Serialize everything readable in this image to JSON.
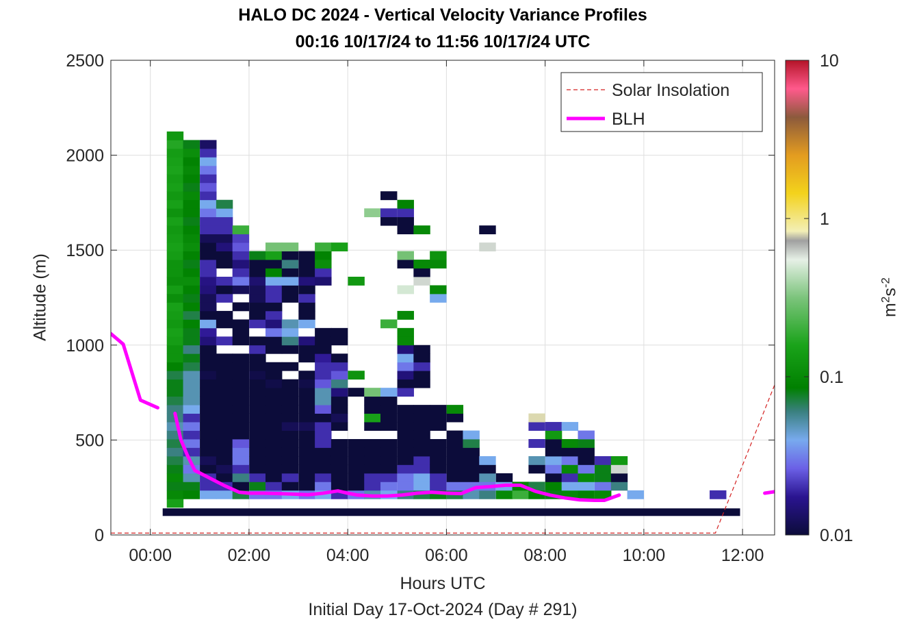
{
  "chart_data": {
    "type": "heatmap",
    "title": "HALO DC 2024 - Vertical Velocity Variance Profiles",
    "subtitle": "00:16 10/17/24 to 11:56 10/17/24  UTC",
    "xlabel": "Hours UTC",
    "xlabel2": "Initial Day 17-Oct-2024 (Day # 291)",
    "ylabel": "Altitude (m)",
    "colorbar_label": "m²s⁻²",
    "colorbar_unit_base": "m",
    "colorbar_unit_sup1": "2",
    "colorbar_unit_mid": "s",
    "colorbar_unit_sup2": "-2",
    "xlim": [
      -0.8,
      12.65
    ],
    "ylim": [
      0,
      2500
    ],
    "x_ticks": [
      "00:00",
      "02:00",
      "04:00",
      "06:00",
      "08:00",
      "10:00",
      "12:00"
    ],
    "x_tick_values": [
      0,
      2,
      4,
      6,
      8,
      10,
      12
    ],
    "y_ticks": [
      "0",
      "500",
      "1000",
      "1500",
      "2000",
      "2500"
    ],
    "y_tick_values": [
      0,
      500,
      1000,
      1500,
      2000,
      2500
    ],
    "color_scale": "log",
    "clim": [
      0.01,
      10
    ],
    "colorbar_ticks": [
      "0.01",
      "0.1",
      "1",
      "10"
    ],
    "colorbar_tick_values": [
      0.01,
      0.1,
      1,
      10
    ],
    "grid": true,
    "legend_position": "top-right",
    "legend": [
      {
        "label": "Solar Insolation",
        "style": "dashed",
        "color": "#d42020"
      },
      {
        "label": "BLH",
        "style": "solid",
        "color": "#ff00ff"
      }
    ],
    "cell_width_hours": 0.333,
    "cell_height_m": 45,
    "variance_columns": [
      {
        "t": 0.5,
        "z0": 145,
        "v": [
          0.15,
          0.1,
          0.08,
          0.1,
          0.08,
          0.07,
          0.06,
          0.07,
          0.06,
          0.05,
          0.06,
          0.06,
          0.07,
          0.08,
          0.08,
          0.07,
          0.09,
          0.12,
          0.12,
          0.14,
          0.15,
          0.13,
          0.14,
          0.15,
          0.11,
          0.14,
          0.11,
          0.12,
          0.12,
          0.14,
          0.15,
          0.14,
          0.13,
          0.15,
          0.12,
          0.15,
          0.13,
          0.15,
          0.14,
          0.16,
          0.15,
          0.14,
          0.17,
          0.13
        ]
      },
      {
        "t": 0.83,
        "z0": 190,
        "v": [
          0.09,
          0.08,
          0.05,
          0.03,
          0.05,
          0.02,
          0.03,
          0.02,
          0.03,
          0.02,
          0.04,
          0.05,
          0.05,
          0.05,
          0.05,
          0.07,
          0.08,
          0.06,
          0.08,
          0.08,
          0.09,
          0.07,
          0.09,
          0.08,
          0.09,
          0.11,
          0.09,
          0.08,
          0.09,
          0.11,
          0.1,
          0.09,
          0.08,
          0.09,
          0.09,
          0.1,
          0.08,
          0.09,
          0.1,
          0.09,
          0.11,
          0.08
        ]
      },
      {
        "t": 1.17,
        "z0": 190,
        "v": [
          0.04,
          0.02,
          0.02,
          0.01,
          0.012,
          0.01,
          0.01,
          0.01,
          0.01,
          0.01,
          0.01,
          0.01,
          0.01,
          0.01,
          0.011,
          0.01,
          0.01,
          0.01,
          0.015,
          0.018,
          0.04,
          0.01,
          0.012,
          0.012,
          0.015,
          0.016,
          0.02,
          0.02,
          0.01,
          0.01,
          0.012,
          0.02,
          0.02,
          0.03,
          0.04,
          0.02,
          0.025,
          0.02,
          0.03,
          0.04,
          0.02,
          0.013
        ]
      },
      {
        "t": 1.5,
        "z0": 190,
        "v": [
          0.04,
          0.02,
          0.01,
          0.012,
          0.01,
          0.01,
          0.01,
          0.01,
          0.01,
          0.01,
          0.01,
          0.01,
          0.01,
          0.01,
          0.01,
          0.01,
          0.01,
          null,
          0.02,
          null,
          0.01,
          0.01,
          null,
          0.02,
          0.01,
          0.02,
          null,
          0.01,
          0.01,
          0.015,
          0.012,
          0.02,
          0.02,
          0.04,
          0.07
        ]
      },
      {
        "t": 1.83,
        "z0": 190,
        "v": [
          0.07,
          0.01,
          0.06,
          0.02,
          0.03,
          0.03,
          0.025,
          0.01,
          0.01,
          0.01,
          0.01,
          0.01,
          0.01,
          0.01,
          0.01,
          0.01,
          0.01,
          null,
          0.01,
          0.01,
          0.01,
          null,
          0.01,
          null,
          0.012,
          0.03,
          0.02,
          0.015,
          0.02,
          0.025,
          0.022,
          0.2
        ]
      },
      {
        "t": 2.17,
        "z0": 190,
        "v": [
          0.03,
          0.08,
          0.02,
          0.01,
          0.01,
          0.01,
          0.01,
          0.01,
          0.01,
          0.01,
          0.01,
          0.01,
          0.01,
          0.01,
          0.011,
          0.01,
          0.01,
          0.02,
          0.01,
          null,
          0.02,
          0.01,
          0.01,
          0.012,
          0.012,
          0.014,
          0.01,
          0.01,
          0.08
        ]
      },
      {
        "t": 2.5,
        "z0": 190,
        "v": [
          0.03,
          0.02,
          0.01,
          0.01,
          0.01,
          0.01,
          0.01,
          0.01,
          0.01,
          0.01,
          0.01,
          0.01,
          0.01,
          0.011,
          0.01,
          0.01,
          null,
          0.01,
          0.01,
          0.03,
          0.015,
          0.02,
          0.01,
          0.02,
          0.02,
          0.04,
          0.09,
          0.01,
          0.15,
          0.3
        ]
      },
      {
        "t": 2.83,
        "z0": 190,
        "v": [
          0.04,
          0.01,
          0.02,
          0.01,
          0.01,
          0.01,
          0.01,
          0.01,
          0.012,
          0.01,
          0.01,
          0.01,
          0.01,
          0.01,
          null,
          0.01,
          null,
          0.01,
          0.06,
          0.04,
          0.05,
          null,
          null,
          0.01,
          0.01,
          0.04,
          0.01,
          0.06,
          0.01,
          0.3
        ]
      },
      {
        "t": 3.17,
        "z0": 190,
        "v": [
          0.03,
          0.01,
          0.01,
          0.01,
          0.01,
          0.01,
          0.01,
          0.01,
          0.012,
          0.01,
          0.01,
          0.01,
          0.01,
          0.011,
          0.01,
          null,
          0.01,
          0.01,
          0.015,
          null,
          0.04,
          0.01,
          0.01,
          0.02,
          0.01,
          0.015,
          0.01,
          0.01,
          0.01
        ]
      },
      {
        "t": 3.5,
        "z0": 190,
        "v": [
          0.04,
          0.03,
          0.02,
          0.01,
          0.01,
          0.01,
          0.02,
          0.02,
          0.02,
          0.01,
          0.025,
          0.05,
          0.05,
          0.025,
          0.02,
          0.02,
          0.018,
          0.01,
          0.01,
          0.01,
          null,
          null,
          null,
          null,
          null,
          0.014,
          0.02,
          0.11,
          0.09,
          0.2
        ]
      },
      {
        "t": 3.83,
        "z0": 190,
        "v": [
          0.02,
          0.01,
          0.01,
          0.01,
          0.01,
          0.01,
          0.01,
          null,
          0.01,
          0.012,
          0.01,
          0.01,
          0.015,
          0.06,
          0.025,
          0.02,
          0.01,
          null,
          0.01,
          0.01,
          null,
          null,
          null,
          null,
          null,
          null,
          null,
          null,
          null,
          0.15
        ]
      },
      {
        "t": 4.17,
        "z0": 190,
        "v": [
          0.03,
          0.01,
          0.01,
          0.01,
          0.01,
          0.01,
          0.01,
          null,
          null,
          null,
          null,
          null,
          0.01,
          null,
          0.12,
          null,
          null,
          null,
          null,
          null,
          null,
          null,
          null,
          null,
          null,
          0.13
        ]
      },
      {
        "t": 4.5,
        "z0": 190,
        "v": [
          0.05,
          0.02,
          0.02,
          0.01,
          0.01,
          0.01,
          0.01,
          null,
          0.01,
          0.15,
          0.01,
          0.01,
          0.3,
          null,
          null,
          null,
          null,
          null,
          null,
          null,
          null,
          null,
          null,
          null,
          null,
          null,
          null,
          null,
          null,
          null,
          null,
          null,
          null,
          0.35
        ]
      },
      {
        "t": 4.83,
        "z0": 190,
        "v": [
          0.04,
          0.03,
          0.02,
          0.01,
          0.01,
          0.01,
          0.01,
          null,
          0.01,
          0.01,
          0.01,
          0.01,
          0.04,
          null,
          null,
          null,
          null,
          null,
          null,
          null,
          0.2,
          null,
          null,
          null,
          null,
          null,
          null,
          null,
          null,
          null,
          null,
          null,
          0.01,
          0.02,
          null,
          0.01
        ]
      },
      {
        "t": 5.17,
        "z0": 190,
        "v": [
          0.06,
          0.03,
          0.03,
          0.02,
          0.01,
          0.01,
          0.01,
          0.01,
          0.01,
          0.01,
          0.01,
          null,
          0.02,
          0.01,
          0.015,
          0.03,
          0.04,
          0.015,
          0.1,
          0.1,
          null,
          0.1,
          null,
          null,
          0.5,
          null,
          null,
          0.01,
          0.3,
          null,
          null,
          0.01,
          0.01,
          0.02,
          0.09
        ]
      },
      {
        "t": 5.5,
        "z0": 190,
        "v": [
          0.07,
          0.04,
          0.04,
          0.02,
          0.02,
          0.01,
          0.01,
          0.01,
          0.01,
          0.01,
          0.01,
          null,
          null,
          0.01,
          0.01,
          0.02,
          0.01,
          0.01,
          null,
          null,
          null,
          null,
          null,
          null,
          null,
          0.6,
          0.01,
          0.1,
          null,
          null,
          null,
          0.1
        ]
      },
      {
        "t": 5.83,
        "z0": 190,
        "v": [
          0.08,
          0.02,
          0.02,
          0.01,
          0.01,
          0.01,
          0.01,
          null,
          0.01,
          0.01,
          0.01,
          null,
          null,
          null,
          null,
          null,
          null,
          null,
          null,
          null,
          null,
          null,
          null,
          0.04,
          0.1,
          null,
          null,
          0.1,
          0.12
        ]
      },
      {
        "t": 6.17,
        "z0": 190,
        "v": [
          0.07,
          0.03,
          0.01,
          0.01,
          0.01,
          0.01,
          0.01,
          0.01,
          null,
          0.01,
          0.1
        ]
      },
      {
        "t": 6.5,
        "z0": 190,
        "v": [
          0.05,
          0.03,
          0.01,
          0.01,
          0.01,
          0.01,
          0.07,
          0.04
        ]
      },
      {
        "t": 6.83,
        "z0": 190,
        "v": [
          0.06,
          0.03,
          0.05,
          0.01,
          0.04,
          null,
          null,
          null,
          null,
          null,
          null,
          null,
          null,
          null,
          null,
          null,
          null,
          null,
          null,
          null,
          null,
          null,
          null,
          null,
          null,
          null,
          null,
          null,
          null,
          0.6,
          null,
          0.01
        ]
      },
      {
        "t": 7.17,
        "z0": 190,
        "v": [
          0.1,
          0.04,
          0.01
        ]
      },
      {
        "t": 7.5,
        "z0": 190,
        "v": [
          0.2,
          0.09
        ]
      },
      {
        "t": 7.83,
        "z0": 190,
        "v": [
          0.09,
          0.07,
          null,
          0.01,
          0.05,
          null,
          0.02,
          null,
          0.02,
          0.8
        ]
      },
      {
        "t": 8.17,
        "z0": 190,
        "v": [
          0.08,
          0.09,
          0.01,
          0.03,
          0.04,
          0.01,
          0.01,
          0.13,
          0.02
        ]
      },
      {
        "t": 8.5,
        "z0": 190,
        "v": [
          0.1,
          0.04,
          0.02,
          0.1,
          0.03,
          0.01,
          0.1,
          null,
          0.04
        ]
      },
      {
        "t": 8.83,
        "z0": 190,
        "v": [
          0.09,
          0.04,
          0.1,
          0.03,
          0.01,
          0.01,
          0.08,
          0.03
        ]
      },
      {
        "t": 9.17,
        "z0": 190,
        "v": [
          0.1,
          0.03,
          0.08,
          0.08,
          0.02
        ]
      },
      {
        "t": 9.5,
        "z0": 235,
        "v": [
          0.06,
          0.01,
          0.6,
          0.13
        ]
      },
      {
        "t": 9.83,
        "z0": 190,
        "v": [
          0.04
        ]
      },
      {
        "t": 11.5,
        "z0": 190,
        "v": [
          0.02
        ]
      }
    ],
    "ground_layer": {
      "x_start": 0.25,
      "x_end": 11.95,
      "altitude_range": [
        100,
        140
      ],
      "value": 0.01
    },
    "blh_series": [
      {
        "x": [
          -0.8,
          -0.55,
          -0.2,
          0.15
        ],
        "y": [
          1060,
          1005,
          710,
          670
        ]
      },
      {
        "x": [
          0.5,
          0.62,
          0.75,
          0.9,
          1.2,
          1.5,
          1.8,
          2.0,
          2.3,
          2.6,
          2.9,
          3.2,
          3.5,
          3.8,
          4.0,
          4.2,
          4.5,
          4.8,
          5.1,
          5.4,
          5.7,
          6.0,
          6.3,
          6.6,
          6.9,
          7.2,
          7.5,
          7.8,
          8.1,
          8.4,
          8.7,
          9.0,
          9.2,
          9.5
        ],
        "y": [
          640,
          500,
          420,
          340,
          300,
          260,
          225,
          220,
          220,
          218,
          215,
          212,
          220,
          232,
          220,
          210,
          205,
          205,
          210,
          220,
          225,
          220,
          218,
          250,
          255,
          262,
          262,
          230,
          210,
          195,
          185,
          182,
          182,
          210
        ]
      },
      {
        "x": [
          12.45,
          12.65
        ],
        "y": [
          220,
          228
        ]
      }
    ],
    "solar_insolation": {
      "x": [
        -0.8,
        11.45,
        12.65
      ],
      "y": [
        10,
        10,
        790
      ]
    }
  }
}
